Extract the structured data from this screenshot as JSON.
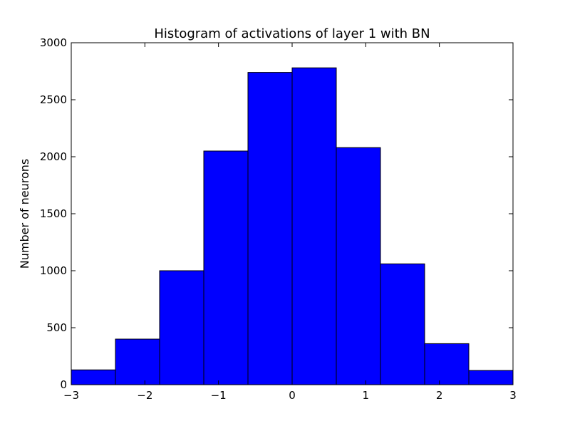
{
  "chart_data": {
    "type": "bar",
    "title": "Histogram of activations of layer 1  with BN",
    "xlabel": "",
    "ylabel": "Number of neurons",
    "xlim": [
      -3,
      3
    ],
    "ylim": [
      0,
      3000
    ],
    "bin_edges": [
      -3,
      -2.4,
      -1.8,
      -1.2,
      -0.6,
      0,
      0.6,
      1.2,
      1.8,
      2.4,
      3
    ],
    "values": [
      130,
      400,
      1000,
      2050,
      2740,
      2780,
      2080,
      1060,
      360,
      125
    ],
    "x_ticks": [
      -3,
      -2,
      -1,
      0,
      1,
      2,
      3
    ],
    "x_tick_labels": [
      "−3",
      "−2",
      "−1",
      "0",
      "1",
      "2",
      "3"
    ],
    "y_ticks": [
      0,
      500,
      1000,
      1500,
      2000,
      2500,
      3000
    ],
    "y_tick_labels": [
      "0",
      "500",
      "1000",
      "1500",
      "2000",
      "2500",
      "3000"
    ],
    "bar_color": "#0000ff",
    "edge_color": "#000000",
    "grid": false
  }
}
